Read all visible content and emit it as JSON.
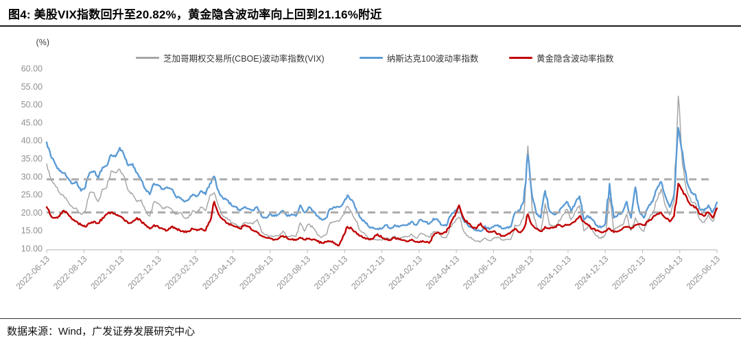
{
  "title": "图4:  美股VIX指数回升至20.82%，黄金隐含波动率向上回到21.16%附近",
  "source": "数据来源：Wind，广发证券发展研究中心",
  "colors": {
    "vix_gray": "#a6a6a6",
    "nasdaq_blue": "#5b9bd5",
    "gold_red": "#c00000",
    "axis_line": "#c0c0c0",
    "tick_label": "#8f8f8f",
    "reference_dash": "#ababab"
  },
  "chart_data": {
    "type": "line",
    "title": "",
    "xlabel": "",
    "ylabel": "(%)",
    "ylim": [
      10,
      60
    ],
    "grid": false,
    "legend_position": "top",
    "y_ticks": [
      "60.00",
      "55.00",
      "50.00",
      "45.00",
      "40.00",
      "35.00",
      "30.00",
      "25.00",
      "20.00",
      "15.00",
      "10.00"
    ],
    "x_ticks": [
      "2022-06-13",
      "2022-08-13",
      "2022-10-13",
      "2022-12-13",
      "2023-02-13",
      "2023-04-13",
      "2023-06-13",
      "2023-08-13",
      "2023-10-13",
      "2023-12-13",
      "2024-02-13",
      "2024-04-13",
      "2024-06-13",
      "2024-08-13",
      "2024-10-13",
      "2024-12-13",
      "2025-02-13",
      "2025-04-13",
      "2025-06-13"
    ],
    "x_frequency": "weekly from 2022-06-13 to 2025-06-13",
    "reference_lines": [
      {
        "value": 29.2,
        "style": "dashed"
      },
      {
        "value": 20.0,
        "style": "dashed"
      }
    ],
    "end_labels": {
      "vix_end": 20.82,
      "gold_end": 21.16
    },
    "series": [
      {
        "name": "芝加哥期权交易所(CBOE)波动率指数(VIX)",
        "color": "#a6a6a6",
        "values": [
          33.5,
          29.0,
          27.5,
          25.5,
          24.5,
          23.0,
          21.5,
          21.0,
          19.5,
          20.5,
          25.5,
          25.5,
          23.0,
          26.5,
          27.0,
          31.5,
          31.0,
          32.0,
          30.0,
          26.0,
          25.0,
          23.0,
          23.5,
          20.5,
          19.0,
          23.0,
          22.5,
          21.0,
          21.5,
          21.0,
          19.5,
          20.0,
          18.5,
          18.5,
          20.5,
          20.0,
          21.5,
          20.5,
          24.8,
          25.5,
          21.7,
          19.0,
          18.5,
          17.0,
          16.8,
          16.0,
          17.0,
          17.0,
          16.8,
          18.0,
          14.6,
          13.8,
          13.5,
          13.4,
          13.6,
          14.8,
          13.3,
          13.6,
          13.3,
          17.1,
          14.8,
          16.8,
          15.7,
          13.8,
          13.1,
          13.8,
          17.2,
          17.5,
          17.5,
          19.3,
          21.7,
          20.0,
          17.6,
          14.9,
          14.2,
          12.8,
          12.6,
          12.4,
          12.3,
          13.0,
          12.5,
          13.4,
          12.7,
          13.3,
          13.3,
          13.9,
          12.9,
          14.2,
          13.8,
          13.1,
          14.7,
          14.4,
          13.1,
          13.0,
          16.0,
          17.3,
          18.7,
          15.0,
          13.5,
          12.6,
          12.0,
          11.9,
          12.9,
          12.2,
          12.7,
          13.2,
          12.4,
          12.5,
          12.5,
          16.5,
          16.4,
          18.6,
          38.5,
          20.7,
          15.9,
          15.0,
          22.4,
          16.6,
          16.2,
          17.0,
          19.2,
          20.9,
          18.0,
          20.3,
          21.9,
          14.9,
          16.1,
          15.2,
          13.5,
          12.8,
          13.8,
          24.0,
          15.0,
          16.1,
          16.5,
          19.5,
          15.0,
          18.5,
          15.8,
          14.8,
          18.2,
          19.6,
          23.4,
          26.5,
          21.9,
          19.3,
          22.8,
          52.3,
          33.0,
          26.0,
          23.0,
          22.5,
          18.0,
          17.2,
          19.5,
          17.5,
          20.82
        ]
      },
      {
        "name": "纳斯达克100波动率指数",
        "color": "#5b9bd5",
        "values": [
          39.5,
          35.5,
          33.5,
          31.5,
          31.0,
          29.5,
          28.0,
          28.5,
          26.0,
          27.0,
          31.0,
          31.5,
          29.5,
          32.5,
          33.0,
          36.0,
          35.5,
          38.0,
          36.0,
          33.0,
          33.5,
          31.0,
          29.0,
          26.5,
          25.0,
          28.0,
          27.5,
          26.5,
          27.0,
          26.5,
          24.5,
          24.0,
          23.0,
          23.5,
          25.0,
          24.5,
          26.0,
          25.0,
          28.0,
          30.0,
          26.0,
          24.0,
          23.5,
          22.0,
          21.5,
          20.5,
          21.5,
          21.0,
          20.5,
          21.5,
          19.0,
          18.5,
          19.5,
          19.0,
          19.5,
          20.5,
          19.0,
          19.5,
          19.0,
          22.0,
          20.0,
          21.5,
          20.5,
          19.0,
          18.0,
          18.5,
          21.0,
          21.5,
          21.5,
          22.5,
          24.8,
          23.5,
          21.0,
          18.5,
          17.5,
          16.0,
          15.8,
          15.5,
          15.5,
          16.5,
          15.5,
          16.5,
          16.0,
          16.5,
          16.5,
          17.5,
          16.5,
          18.0,
          17.5,
          16.8,
          18.3,
          18.0,
          16.5,
          16.3,
          19.0,
          20.5,
          21.5,
          18.0,
          16.5,
          15.8,
          15.0,
          14.8,
          16.2,
          15.3,
          16.0,
          16.5,
          15.5,
          15.8,
          16.0,
          20.0,
          20.5,
          23.0,
          36.0,
          24.5,
          19.5,
          18.5,
          26.0,
          20.5,
          19.5,
          20.0,
          21.5,
          23.0,
          20.5,
          22.5,
          24.5,
          18.0,
          19.0,
          18.0,
          16.5,
          15.8,
          16.8,
          28.0,
          18.5,
          19.5,
          20.0,
          23.0,
          18.5,
          27.0,
          20.0,
          18.5,
          21.5,
          23.0,
          26.5,
          28.5,
          24.5,
          21.5,
          25.0,
          43.5,
          36.5,
          28.5,
          25.5,
          25.0,
          21.0,
          20.5,
          22.0,
          20.0,
          22.8
        ]
      },
      {
        "name": "黄金隐含波动率指数",
        "color": "#c00000",
        "values": [
          21.5,
          19.0,
          18.5,
          19.0,
          20.5,
          19.5,
          18.0,
          17.5,
          16.5,
          16.0,
          17.0,
          17.5,
          17.0,
          18.5,
          19.5,
          20.0,
          19.5,
          19.0,
          18.0,
          17.0,
          17.5,
          18.5,
          17.5,
          16.5,
          15.5,
          16.5,
          16.0,
          15.5,
          15.0,
          16.0,
          15.5,
          15.0,
          14.5,
          14.8,
          15.5,
          15.0,
          15.5,
          15.0,
          17.5,
          23.0,
          19.5,
          18.0,
          17.0,
          16.5,
          16.0,
          15.5,
          16.5,
          16.0,
          15.0,
          14.5,
          13.5,
          13.0,
          12.8,
          12.5,
          12.8,
          13.5,
          12.8,
          12.5,
          12.3,
          13.0,
          12.5,
          12.8,
          12.5,
          12.0,
          11.5,
          11.8,
          12.0,
          11.5,
          10.8,
          13.5,
          16.0,
          15.5,
          14.5,
          13.5,
          13.0,
          12.5,
          12.8,
          14.0,
          13.0,
          12.5,
          12.3,
          13.0,
          12.5,
          12.3,
          12.0,
          12.5,
          11.8,
          12.0,
          11.8,
          11.5,
          13.5,
          14.5,
          14.0,
          14.5,
          17.0,
          19.0,
          22.0,
          18.5,
          17.0,
          16.0,
          15.5,
          17.0,
          15.5,
          14.5,
          14.8,
          14.0,
          13.5,
          13.8,
          14.5,
          15.5,
          14.5,
          15.5,
          19.5,
          16.5,
          15.5,
          14.8,
          16.0,
          15.5,
          15.8,
          16.5,
          16.0,
          16.5,
          16.8,
          17.5,
          19.0,
          17.5,
          16.5,
          15.5,
          15.0,
          14.5,
          14.8,
          15.5,
          14.5,
          14.8,
          15.5,
          16.0,
          15.5,
          16.5,
          16.8,
          16.5,
          17.5,
          18.5,
          19.5,
          20.0,
          18.5,
          17.5,
          19.0,
          28.0,
          26.0,
          24.0,
          22.0,
          21.5,
          19.5,
          19.0,
          20.0,
          18.5,
          21.16
        ]
      }
    ]
  }
}
